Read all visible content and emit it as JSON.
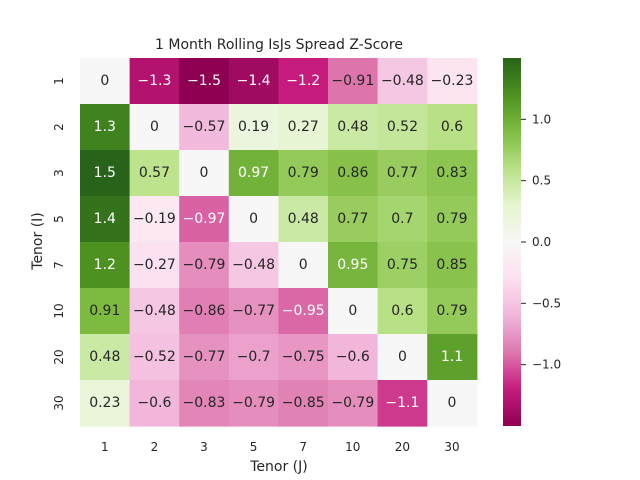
{
  "chart_data": {
    "type": "heatmap",
    "title": "1 Month Rolling IsJs Spread Z-Score",
    "xlabel": "Tenor (J)",
    "ylabel": "Tenor (I)",
    "x_categories": [
      "1",
      "2",
      "3",
      "5",
      "7",
      "10",
      "20",
      "30"
    ],
    "y_categories": [
      "1",
      "2",
      "3",
      "5",
      "7",
      "10",
      "20",
      "30"
    ],
    "values": [
      [
        0,
        -1.3,
        -1.5,
        -1.4,
        -1.2,
        -0.91,
        -0.48,
        -0.23
      ],
      [
        1.3,
        0,
        -0.57,
        0.19,
        0.27,
        0.48,
        0.52,
        0.6
      ],
      [
        1.5,
        0.57,
        0,
        0.97,
        0.79,
        0.86,
        0.77,
        0.83
      ],
      [
        1.4,
        -0.19,
        -0.97,
        0,
        0.48,
        0.77,
        0.7,
        0.79
      ],
      [
        1.2,
        -0.27,
        -0.79,
        -0.48,
        0,
        0.95,
        0.75,
        0.85
      ],
      [
        0.91,
        -0.48,
        -0.86,
        -0.77,
        -0.95,
        0,
        0.6,
        0.79
      ],
      [
        0.48,
        -0.52,
        -0.77,
        -0.7,
        -0.75,
        -0.6,
        0,
        1.1
      ],
      [
        0.23,
        -0.6,
        -0.83,
        -0.79,
        -0.85,
        -0.79,
        -1.1,
        0
      ]
    ],
    "colorscale": "PiYG",
    "vmin": -1.5,
    "vmax": 1.5,
    "colorbar_ticks": [
      1.0,
      0.5,
      0.0,
      -0.5,
      -1.0
    ],
    "colorbar_tick_labels": [
      "1.0",
      "0.5",
      "0.0",
      "−0.5",
      "−1.0"
    ],
    "grid": false,
    "legend": "colorbar-right"
  }
}
